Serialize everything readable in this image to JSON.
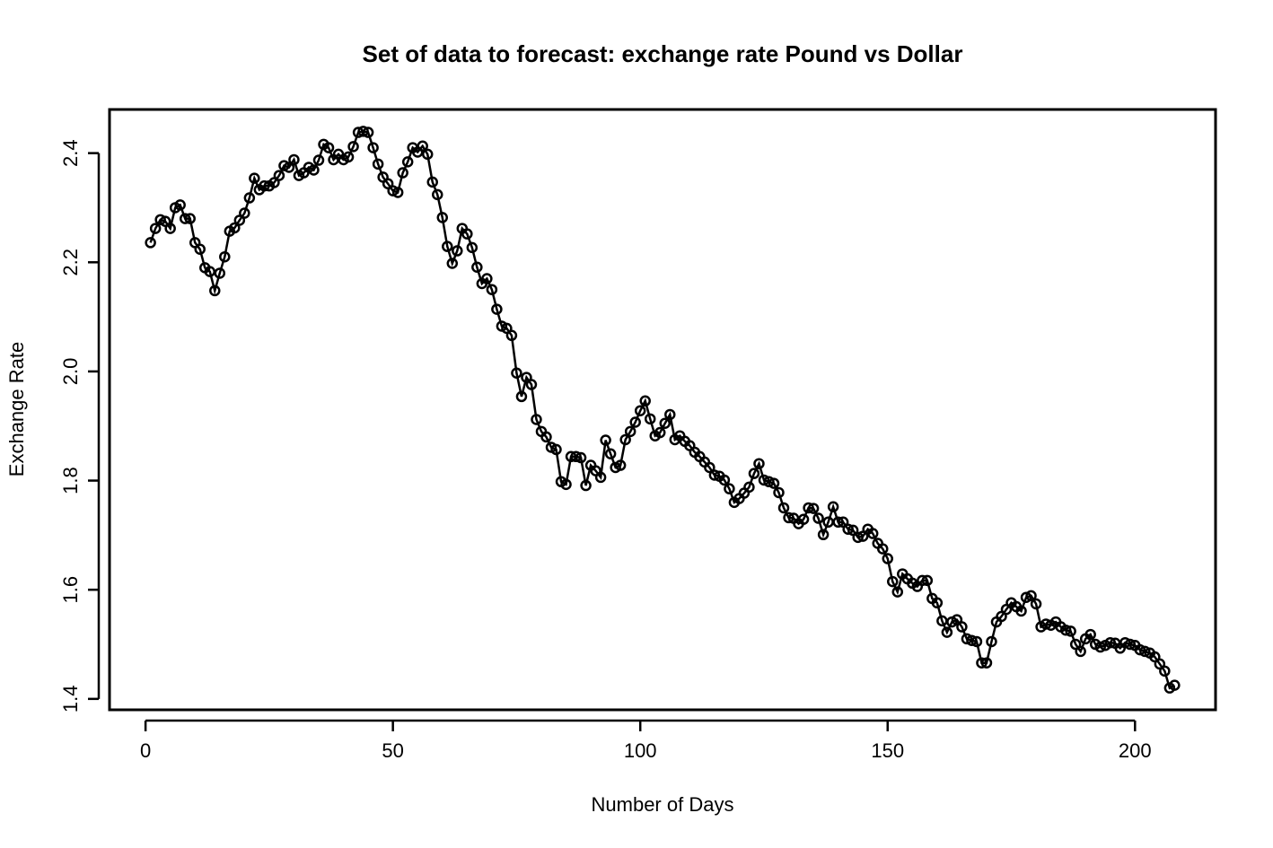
{
  "chart_data": {
    "type": "line",
    "title": "Set of data to forecast: exchange rate Pound vs Dollar",
    "x_label": "Number of Days",
    "y_label": "Exchange Rate",
    "color": "#000000",
    "markers": true,
    "x": [
      1,
      2,
      3,
      4,
      5,
      6,
      7,
      8,
      9,
      10,
      11,
      12,
      13,
      14,
      15,
      16,
      17,
      18,
      19,
      20,
      21,
      22,
      23,
      24,
      25,
      26,
      27,
      28,
      29,
      30,
      31,
      32,
      33,
      34,
      35,
      36,
      37,
      38,
      39,
      40,
      41,
      42,
      43,
      44,
      45,
      46,
      47,
      48,
      49,
      50,
      51,
      52,
      53,
      54,
      55,
      56,
      57,
      58,
      59,
      60,
      61,
      62,
      63,
      64,
      65,
      66,
      67,
      68,
      69,
      70,
      71,
      72,
      73,
      74,
      75,
      76,
      77,
      78,
      79,
      80,
      81,
      82,
      83,
      84,
      85,
      86,
      87,
      88,
      89,
      90,
      91,
      92,
      93,
      94,
      95,
      96,
      97,
      98,
      99,
      100,
      101,
      102,
      103,
      104,
      105,
      106,
      107,
      108,
      109,
      110,
      111,
      112,
      113,
      114,
      115,
      116,
      117,
      118,
      119,
      120,
      121,
      122,
      123,
      124,
      125,
      126,
      127,
      128,
      129,
      130,
      131,
      132,
      133,
      134,
      135,
      136,
      137,
      138,
      139,
      140,
      141,
      142,
      143,
      144,
      145,
      146,
      147,
      148,
      149,
      150,
      151,
      152,
      153,
      154,
      155,
      156,
      157,
      158,
      159,
      160,
      161,
      162,
      163,
      164,
      165,
      166,
      167,
      168,
      169,
      170,
      171,
      172,
      173,
      174,
      175,
      176,
      177,
      178,
      179,
      180,
      181,
      182,
      183,
      184,
      185,
      186,
      187,
      188,
      189,
      190,
      191,
      192,
      193,
      194,
      195,
      196,
      197,
      198,
      199,
      200,
      201,
      202,
      203,
      204,
      205,
      206,
      207,
      208
    ],
    "values": [
      2.236,
      2.262,
      2.278,
      2.275,
      2.262,
      2.3,
      2.305,
      2.28,
      2.28,
      2.236,
      2.224,
      2.19,
      2.183,
      2.148,
      2.18,
      2.21,
      2.257,
      2.263,
      2.277,
      2.29,
      2.318,
      2.354,
      2.333,
      2.34,
      2.34,
      2.346,
      2.359,
      2.377,
      2.374,
      2.388,
      2.359,
      2.364,
      2.374,
      2.369,
      2.387,
      2.416,
      2.41,
      2.388,
      2.398,
      2.388,
      2.393,
      2.412,
      2.438,
      2.44,
      2.438,
      2.41,
      2.38,
      2.356,
      2.344,
      2.331,
      2.328,
      2.364,
      2.384,
      2.41,
      2.402,
      2.413,
      2.398,
      2.347,
      2.324,
      2.282,
      2.229,
      2.198,
      2.221,
      2.262,
      2.252,
      2.227,
      2.191,
      2.161,
      2.17,
      2.15,
      2.114,
      2.083,
      2.079,
      2.066,
      1.997,
      1.954,
      1.989,
      1.976,
      1.912,
      1.89,
      1.88,
      1.861,
      1.857,
      1.798,
      1.793,
      1.844,
      1.844,
      1.842,
      1.791,
      1.828,
      1.818,
      1.806,
      1.874,
      1.849,
      1.824,
      1.828,
      1.875,
      1.89,
      1.907,
      1.928,
      1.946,
      1.913,
      1.882,
      1.888,
      1.905,
      1.921,
      1.875,
      1.882,
      1.872,
      1.864,
      1.852,
      1.844,
      1.834,
      1.824,
      1.81,
      1.808,
      1.801,
      1.785,
      1.76,
      1.767,
      1.777,
      1.788,
      1.813,
      1.831,
      1.801,
      1.798,
      1.795,
      1.778,
      1.75,
      1.732,
      1.731,
      1.721,
      1.729,
      1.75,
      1.749,
      1.731,
      1.701,
      1.724,
      1.752,
      1.724,
      1.724,
      1.711,
      1.709,
      1.696,
      1.698,
      1.711,
      1.703,
      1.685,
      1.675,
      1.657,
      1.615,
      1.596,
      1.629,
      1.62,
      1.612,
      1.606,
      1.617,
      1.617,
      1.584,
      1.576,
      1.543,
      1.522,
      1.541,
      1.545,
      1.532,
      1.51,
      1.507,
      1.505,
      1.466,
      1.466,
      1.505,
      1.541,
      1.551,
      1.564,
      1.576,
      1.569,
      1.561,
      1.586,
      1.589,
      1.574,
      1.532,
      1.537,
      1.535,
      1.541,
      1.532,
      1.526,
      1.524,
      1.5,
      1.487,
      1.51,
      1.518,
      1.5,
      1.495,
      1.498,
      1.503,
      1.502,
      1.493,
      1.503,
      1.5,
      1.498,
      1.49,
      1.487,
      1.484,
      1.477,
      1.464,
      1.451,
      1.42,
      1.425
    ],
    "xlim": [
      -7.28,
      216.28
    ],
    "ylim": [
      1.38,
      2.48
    ],
    "xticks": [
      0,
      50,
      100,
      150,
      200
    ],
    "yticks": [
      1.4,
      1.6,
      1.8,
      {
        "value": 2,
        "label": "2.0"
      },
      2.2,
      2.4
    ]
  }
}
